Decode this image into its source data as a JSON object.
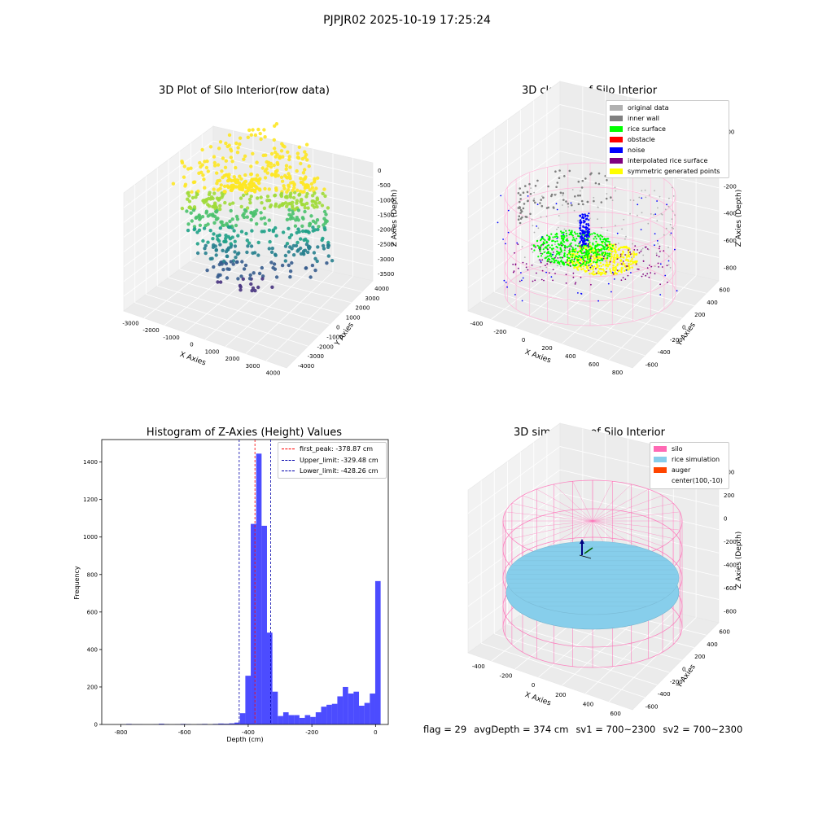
{
  "suptitle": "PJPJR02 2025-10-19 17:25:24",
  "status": {
    "flag": "flag = 29",
    "avg_depth": "avgDepth = 374 cm",
    "sv1": "sv1 = 700~2300",
    "sv2": "sv2 = 700~2300"
  },
  "chart_data": [
    {
      "type": "scatter",
      "projection": "3d",
      "title": "3D Plot of Silo Interior(row data)",
      "xlabel": "X Axies",
      "ylabel": "Y Axies",
      "zlabel": "Z Axies (Depth)",
      "x_ticks": [
        -3000,
        -2000,
        -1000,
        0,
        1000,
        2000,
        3000,
        4000
      ],
      "y_ticks": [
        -4000,
        -3000,
        -2000,
        -1000,
        0,
        1000,
        2000,
        3000,
        4000
      ],
      "z_ticks": [
        -3500,
        -3000,
        -2500,
        -2000,
        -1500,
        -1000,
        -500,
        0
      ],
      "colormap": "viridis"
    },
    {
      "type": "scatter",
      "projection": "3d",
      "title": "3D classify of Silo Interior",
      "xlabel": "X Axies",
      "ylabel": "Y Axies",
      "zlabel": "Z Axies (Depth)",
      "x_ticks": [
        -400,
        -200,
        0,
        200,
        400,
        600,
        800
      ],
      "y_ticks": [
        -600,
        -400,
        -200,
        0,
        200,
        400,
        600
      ],
      "z_ticks": [
        -800,
        -600,
        -400,
        -200,
        0,
        200
      ],
      "legend_position": "top-right",
      "legend": [
        {
          "label": "original data",
          "color": "#b0b0b0"
        },
        {
          "label": "inner wall",
          "color": "#808080"
        },
        {
          "label": "rice surface",
          "color": "#00ff00"
        },
        {
          "label": "obstacle",
          "color": "#ff0000"
        },
        {
          "label": "noise",
          "color": "#0000ff"
        },
        {
          "label": "interpolated rice surface",
          "color": "#800080"
        },
        {
          "label": "symmetric generated points",
          "color": "#ffff00"
        }
      ]
    },
    {
      "type": "bar",
      "title": "Histogram of Z-Axies (Height) Values",
      "xlabel": "Depth (cm)",
      "ylabel": "Frequency",
      "xlim": [
        -860,
        40
      ],
      "ylim": [
        0,
        1520
      ],
      "x_ticks": [
        -800,
        -600,
        -400,
        -200,
        0
      ],
      "y_ticks": [
        0,
        200,
        400,
        600,
        800,
        1000,
        1200,
        1400
      ],
      "bin_width": 17,
      "bar_color": "#0000ff",
      "bins": [
        {
          "x0": -800,
          "count": 1
        },
        {
          "x0": -783,
          "count": 3
        },
        {
          "x0": -766,
          "count": 1
        },
        {
          "x0": -749,
          "count": 1
        },
        {
          "x0": -732,
          "count": 0
        },
        {
          "x0": -715,
          "count": 0
        },
        {
          "x0": -698,
          "count": 1
        },
        {
          "x0": -681,
          "count": 4
        },
        {
          "x0": -664,
          "count": 2
        },
        {
          "x0": -647,
          "count": 0
        },
        {
          "x0": -630,
          "count": 1
        },
        {
          "x0": -613,
          "count": 3
        },
        {
          "x0": -596,
          "count": 2
        },
        {
          "x0": -579,
          "count": 0
        },
        {
          "x0": -562,
          "count": 2
        },
        {
          "x0": -545,
          "count": 3
        },
        {
          "x0": -528,
          "count": 0
        },
        {
          "x0": -511,
          "count": 3
        },
        {
          "x0": -494,
          "count": 5
        },
        {
          "x0": -477,
          "count": 4
        },
        {
          "x0": -460,
          "count": 6
        },
        {
          "x0": -443,
          "count": 10
        },
        {
          "x0": -426,
          "count": 60
        },
        {
          "x0": -409,
          "count": 260
        },
        {
          "x0": -392,
          "count": 1070
        },
        {
          "x0": -375,
          "count": 1445
        },
        {
          "x0": -358,
          "count": 1060
        },
        {
          "x0": -341,
          "count": 490
        },
        {
          "x0": -324,
          "count": 175
        },
        {
          "x0": -307,
          "count": 45
        },
        {
          "x0": -290,
          "count": 65
        },
        {
          "x0": -273,
          "count": 50
        },
        {
          "x0": -256,
          "count": 50
        },
        {
          "x0": -239,
          "count": 35
        },
        {
          "x0": -222,
          "count": 50
        },
        {
          "x0": -205,
          "count": 40
        },
        {
          "x0": -188,
          "count": 65
        },
        {
          "x0": -171,
          "count": 95
        },
        {
          "x0": -154,
          "count": 105
        },
        {
          "x0": -137,
          "count": 110
        },
        {
          "x0": -120,
          "count": 150
        },
        {
          "x0": -103,
          "count": 200
        },
        {
          "x0": -86,
          "count": 165
        },
        {
          "x0": -69,
          "count": 175
        },
        {
          "x0": -52,
          "count": 100
        },
        {
          "x0": -35,
          "count": 115
        },
        {
          "x0": -18,
          "count": 165
        },
        {
          "x0": -1,
          "count": 765
        }
      ],
      "lines": [
        {
          "label": "first_peak: -378.87 cm",
          "x": -378.87,
          "color": "#ff0000"
        },
        {
          "label": "Upper_limit: -329.48 cm",
          "x": -329.48,
          "color": "#0000aa"
        },
        {
          "label": "Lower_limit: -428.26 cm",
          "x": -428.26,
          "color": "#0000aa"
        }
      ],
      "legend_position": "top-right"
    },
    {
      "type": "scatter",
      "projection": "3d",
      "title": "3D simulation of Silo Interior",
      "xlabel": "X Axies",
      "ylabel": "Y Axies",
      "zlabel": "Z Axies (Depth)",
      "x_ticks": [
        -400,
        -200,
        0,
        200,
        400,
        600
      ],
      "y_ticks": [
        -600,
        -400,
        -200,
        0,
        200,
        400,
        600
      ],
      "z_ticks": [
        -800,
        -600,
        -400,
        -200,
        0,
        200,
        400
      ],
      "legend_position": "top-right",
      "legend": [
        {
          "label": "silo",
          "color": "#ff69b4"
        },
        {
          "label": "rice simulation",
          "color": "#87ceeb"
        },
        {
          "label": "auger",
          "color": "#ff4500"
        },
        {
          "label": "center(100,-10)",
          "color": ""
        }
      ]
    }
  ]
}
